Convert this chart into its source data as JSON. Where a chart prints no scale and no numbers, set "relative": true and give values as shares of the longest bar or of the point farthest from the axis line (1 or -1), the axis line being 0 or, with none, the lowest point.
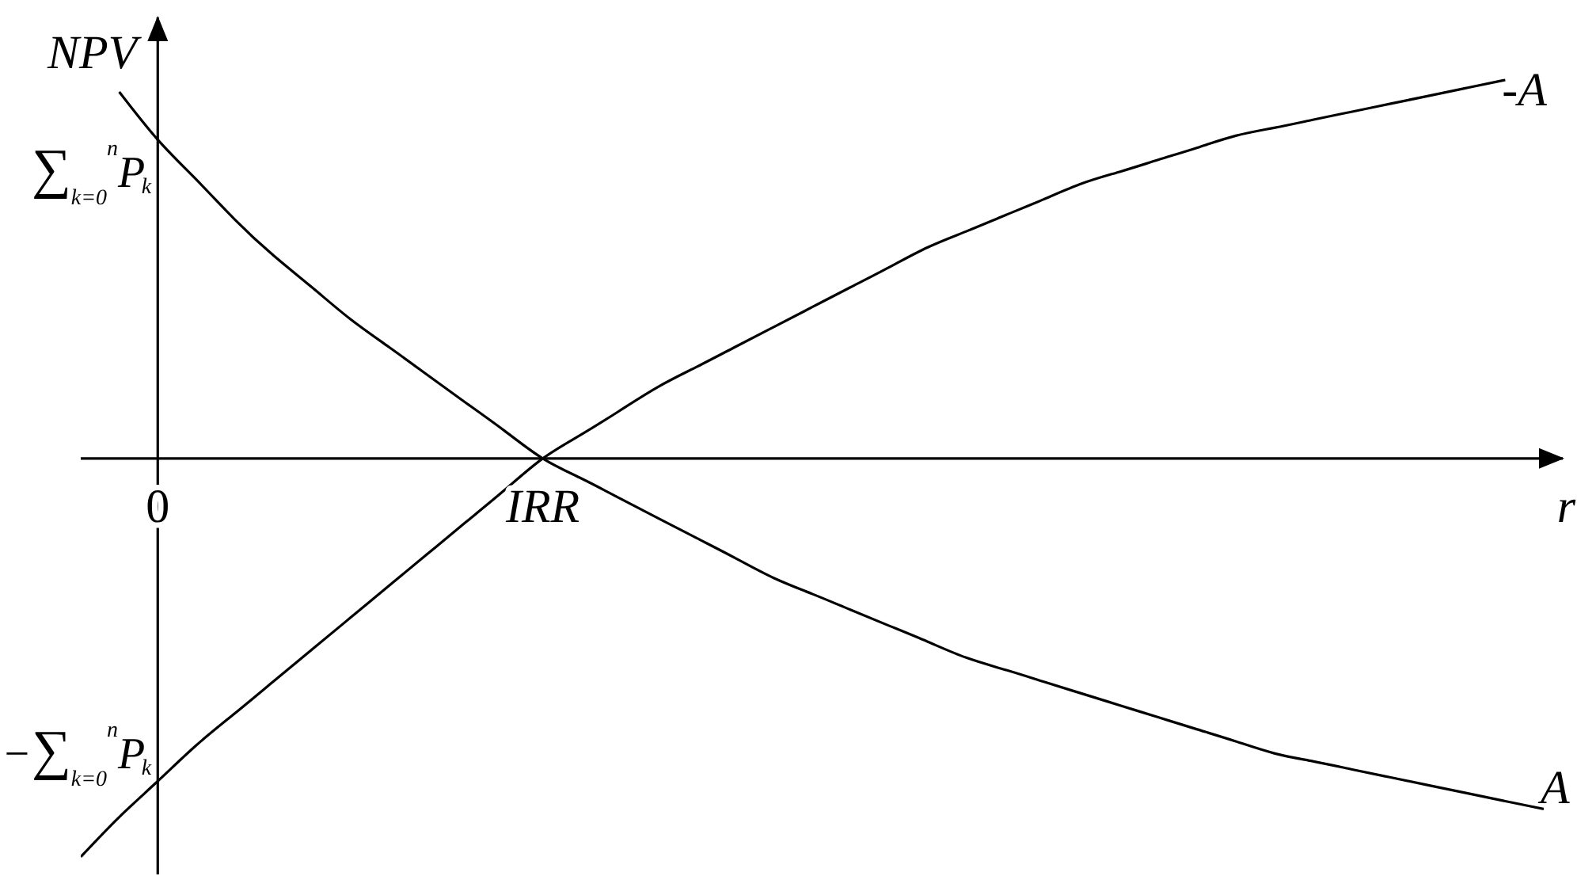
{
  "chart_data": {
    "type": "line",
    "relative": true,
    "xlabel": "r",
    "ylabel": "NPV",
    "categories": [
      null,
      null,
      "0",
      null,
      null,
      null,
      null,
      null,
      null,
      null,
      null,
      null,
      "IRR",
      null,
      null,
      null,
      null,
      null,
      null,
      null,
      null,
      null,
      null,
      null,
      null,
      null,
      null,
      null,
      null,
      null,
      null,
      null,
      null,
      null,
      null,
      null,
      null,
      null,
      null
    ],
    "series": [
      {
        "name": "A",
        "color": "#000000",
        "values": [
          null,
          0.92,
          0.8,
          0.7,
          0.6,
          0.51,
          0.43,
          0.35,
          0.28,
          0.21,
          0.14,
          0.07,
          0,
          -0.05,
          -0.1,
          -0.15,
          -0.2,
          -0.25,
          -0.3,
          -0.34,
          -0.38,
          -0.42,
          -0.46,
          -0.5,
          -0.53,
          -0.56,
          -0.59,
          -0.62,
          -0.65,
          -0.68,
          -0.71,
          -0.74,
          -0.76,
          -0.78,
          -0.8,
          -0.82,
          -0.84,
          -0.86,
          -0.88
        ]
      },
      {
        "name": "-A",
        "color": "#000000",
        "values": [
          -1,
          -0.9,
          -0.81,
          -0.72,
          -0.64,
          -0.56,
          -0.48,
          -0.4,
          -0.32,
          -0.24,
          -0.16,
          -0.08,
          0,
          0.06,
          0.12,
          0.18,
          0.23,
          0.28,
          0.33,
          0.38,
          0.43,
          0.48,
          0.53,
          0.57,
          0.61,
          0.65,
          0.69,
          0.72,
          0.75,
          0.78,
          0.81,
          0.83,
          0.85,
          0.87,
          0.89,
          0.91,
          0.93,
          0.95,
          null
        ]
      }
    ],
    "annotations": [
      {
        "text": "∑$_{k=0}$$^{n}$P$_{k}$",
        "x": "0",
        "y": 0.8
      },
      {
        "text": "−∑$_{k=0}$$^{n}$P$_{k}$",
        "x": "0",
        "y": -0.81
      }
    ]
  }
}
